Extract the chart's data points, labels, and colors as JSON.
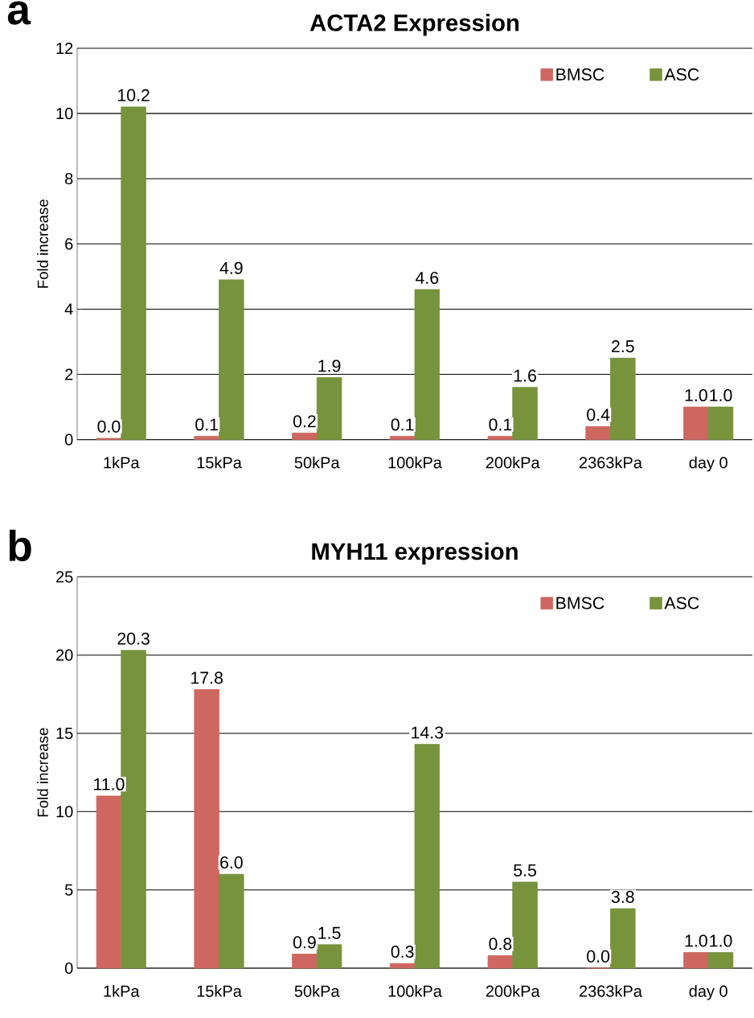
{
  "chart_data": [
    {
      "type": "bar",
      "title": "ACTA2 Expression",
      "ylabel": "Fold increase",
      "annotations": [
        "a"
      ],
      "categories": [
        "1kPa",
        "15kPa",
        "50kPa",
        "100kPa",
        "200kPa",
        "2363kPa",
        "day 0"
      ],
      "series": [
        {
          "name": "BMSC",
          "color": "#cd6760",
          "values": [
            0.04,
            0.1,
            0.2,
            0.1,
            0.1,
            0.4,
            1.0
          ],
          "value_labels": [
            "0.0",
            "0.1",
            "0.2",
            "0.1",
            "0.1",
            "0.4",
            "1.0"
          ]
        },
        {
          "name": "ASC",
          "color": "#77933c",
          "values": [
            10.2,
            4.9,
            1.9,
            4.6,
            1.6,
            2.5,
            1.0
          ],
          "value_labels": [
            "10.2",
            "4.9",
            "1.9",
            "4.6",
            "1.6",
            "2.5",
            "1.0"
          ]
        }
      ],
      "ylim": [
        0,
        12
      ],
      "yticks": [
        0,
        2,
        4,
        6,
        8,
        10,
        12
      ],
      "grid": "y",
      "legend": "top right"
    },
    {
      "type": "bar",
      "title": "MYH11 expression",
      "ylabel": "Fold increase",
      "annotations": [
        "b"
      ],
      "categories": [
        "1kPa",
        "15kPa",
        "50kPa",
        "100kPa",
        "200kPa",
        "2363kPa",
        "day 0"
      ],
      "series": [
        {
          "name": "BMSC",
          "color": "#cd6760",
          "values": [
            11.0,
            17.8,
            0.9,
            0.3,
            0.8,
            0.0,
            1.0
          ],
          "value_labels": [
            "11.0",
            "17.8",
            "0.9",
            "0.3",
            "0.8",
            "0.0",
            "1.0"
          ]
        },
        {
          "name": "ASC",
          "color": "#77933c",
          "values": [
            20.3,
            6.0,
            1.5,
            14.3,
            5.5,
            3.8,
            1.0
          ],
          "value_labels": [
            "20.3",
            "6.0",
            "1.5",
            "14.3",
            "5.5",
            "3.8",
            "1.0"
          ]
        }
      ],
      "ylim": [
        0,
        25
      ],
      "yticks": [
        0,
        5,
        10,
        15,
        20,
        25
      ],
      "grid": "y",
      "legend": "top right"
    }
  ]
}
